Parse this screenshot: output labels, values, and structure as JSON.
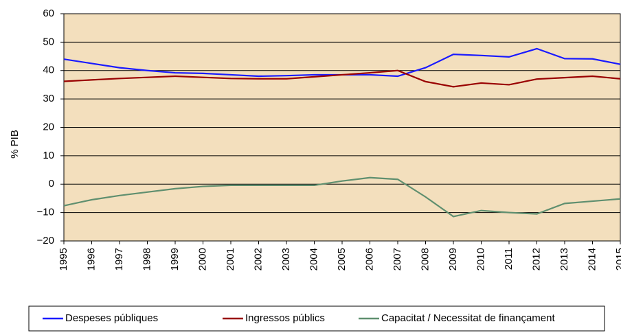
{
  "chart_data": {
    "type": "line",
    "y_label": "% PIB",
    "categories": [
      "1995",
      "1996",
      "1997",
      "1998",
      "1999",
      "2000",
      "2001",
      "2002",
      "2003",
      "2004",
      "2005",
      "2006",
      "2007",
      "2008",
      "2009",
      "2010",
      "2011",
      "2012",
      "2013",
      "2014",
      "2015"
    ],
    "series": [
      {
        "name": "Despeses públiques",
        "color": "#1a1aff",
        "values": [
          44,
          42.5,
          41,
          40,
          39.2,
          39,
          38.5,
          38,
          38.2,
          38.5,
          38.5,
          38.5,
          38,
          41,
          45.7,
          45.3,
          44.8,
          47.7,
          44.2,
          44.1,
          42.2
        ]
      },
      {
        "name": "Ingressos públics",
        "color": "#990000",
        "values": [
          36.2,
          36.7,
          37.2,
          37.6,
          38,
          37.6,
          37.2,
          37.1,
          37.1,
          37.8,
          38.5,
          39.2,
          40,
          36.1,
          34.3,
          35.6,
          35,
          37,
          37.5,
          38,
          37.1
        ]
      },
      {
        "name": "Capacitat / Necessitat de finançament",
        "color": "#5f8f6f",
        "values": [
          -7.6,
          -5.5,
          -4,
          -2.8,
          -1.6,
          -0.8,
          -0.4,
          -0.4,
          -0.4,
          -0.4,
          1.1,
          2.3,
          1.7,
          -4.5,
          -11.4,
          -9.3,
          -10,
          -10.5,
          -6.8,
          -6,
          -5.2
        ]
      }
    ],
    "ylim": [
      -20,
      60
    ],
    "yticks": [
      {
        "value": -20,
        "label": "−20"
      },
      {
        "value": -10,
        "label": "−10"
      },
      0,
      10,
      20,
      30,
      40,
      50,
      60
    ],
    "grid": true,
    "background": "#f3dfbd",
    "legend": "bottom"
  }
}
